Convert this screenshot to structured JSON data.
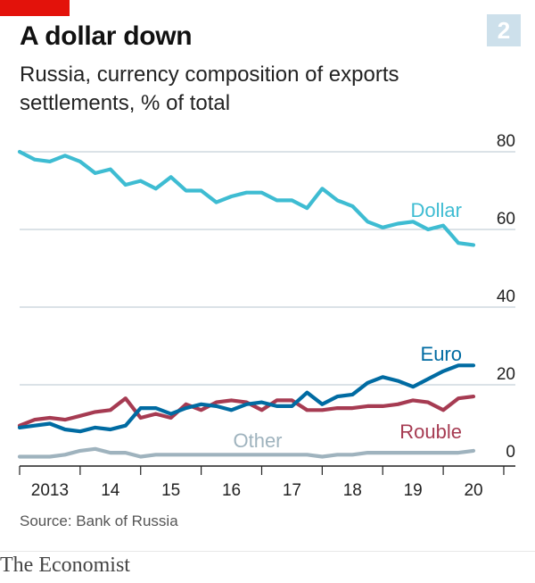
{
  "header": {
    "badge": "2",
    "title": "A dollar down",
    "subtitle": "Russia, currency composition of exports settlements, % of total"
  },
  "source": "Source: Bank of Russia",
  "brand": "The Economist",
  "colors": {
    "accent": "#E3120B",
    "badge": "#CDE0EB",
    "dollar": "#3EBCD2",
    "euro": "#006BA2",
    "rouble": "#A63B52",
    "other": "#9FB3BE",
    "grid": "#B7C6CF"
  },
  "chart_data": {
    "type": "line",
    "title": "A dollar down",
    "subtitle": "Russia, currency composition of exports settlements, % of total",
    "xlabel": "",
    "ylabel": "% of total",
    "xlim": [
      2013.0,
      2020.75
    ],
    "ylim": [
      0,
      80
    ],
    "yticks": [
      0,
      20,
      40,
      60,
      80
    ],
    "xticks": [
      {
        "value": 2013.5,
        "label": "2013"
      },
      {
        "value": 2014.5,
        "label": "14"
      },
      {
        "value": 2015.5,
        "label": "15"
      },
      {
        "value": 2016.5,
        "label": "16"
      },
      {
        "value": 2017.5,
        "label": "17"
      },
      {
        "value": 2018.5,
        "label": "18"
      },
      {
        "value": 2019.5,
        "label": "19"
      },
      {
        "value": 2020.5,
        "label": "20"
      }
    ],
    "grid": true,
    "x": [
      2013.0,
      2013.25,
      2013.5,
      2013.75,
      2014.0,
      2014.25,
      2014.5,
      2014.75,
      2015.0,
      2015.25,
      2015.5,
      2015.75,
      2016.0,
      2016.25,
      2016.5,
      2016.75,
      2017.0,
      2017.25,
      2017.5,
      2017.75,
      2018.0,
      2018.25,
      2018.5,
      2018.75,
      2019.0,
      2019.25,
      2019.5,
      2019.75,
      2020.0,
      2020.25,
      2020.5
    ],
    "series": [
      {
        "name": "Dollar",
        "label": "Dollar",
        "values": [
          80.0,
          78.0,
          77.5,
          79.0,
          77.5,
          74.5,
          75.5,
          71.5,
          72.5,
          70.5,
          73.5,
          70.0,
          70.0,
          67.0,
          68.5,
          69.5,
          69.5,
          67.5,
          67.5,
          65.5,
          70.5,
          67.5,
          66.0,
          62.0,
          60.5,
          61.5,
          62.0,
          60.0,
          61.0,
          56.5,
          56.0
        ]
      },
      {
        "name": "Euro",
        "label": "Euro",
        "values": [
          9.0,
          9.5,
          10.0,
          8.5,
          8.0,
          9.0,
          8.5,
          9.5,
          14.0,
          14.0,
          12.5,
          14.0,
          15.0,
          14.5,
          13.5,
          15.0,
          15.5,
          14.5,
          14.5,
          18.0,
          15.0,
          17.0,
          17.5,
          20.5,
          22.0,
          21.0,
          19.5,
          21.5,
          23.5,
          25.0,
          25.0
        ]
      },
      {
        "name": "Rouble",
        "label": "Rouble",
        "values": [
          9.5,
          11.0,
          11.5,
          11.0,
          12.0,
          13.0,
          13.5,
          16.5,
          11.5,
          12.5,
          11.5,
          15.0,
          13.5,
          15.5,
          16.0,
          15.5,
          13.5,
          16.0,
          16.0,
          13.5,
          13.5,
          14.0,
          14.0,
          14.5,
          14.5,
          15.0,
          16.0,
          15.5,
          13.5,
          16.5,
          17.0
        ]
      },
      {
        "name": "Other",
        "label": "Other",
        "values": [
          1.5,
          1.5,
          1.5,
          2.0,
          3.0,
          3.5,
          2.5,
          2.5,
          1.5,
          2.0,
          2.0,
          2.0,
          2.0,
          2.0,
          2.0,
          2.0,
          2.0,
          2.0,
          2.0,
          2.0,
          1.5,
          2.0,
          2.0,
          2.5,
          2.5,
          2.5,
          2.5,
          2.5,
          2.5,
          2.5,
          3.0
        ]
      }
    ]
  }
}
